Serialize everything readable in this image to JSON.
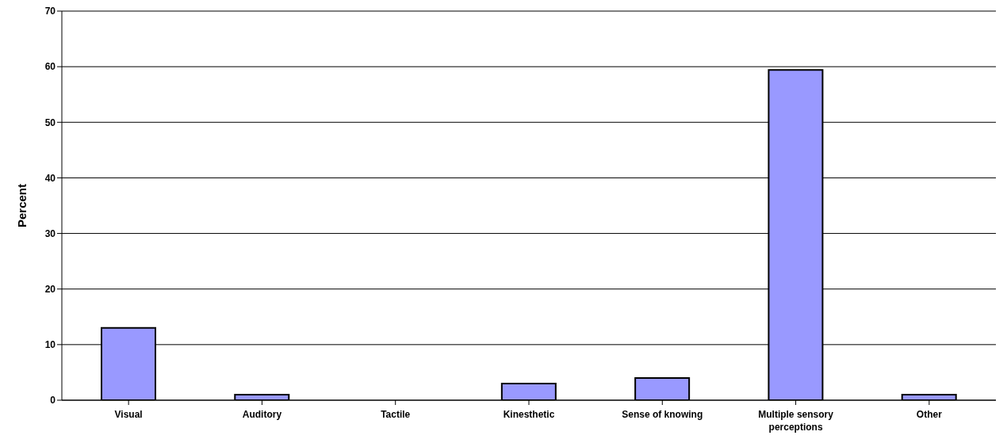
{
  "chart_data": {
    "type": "bar",
    "ylabel": "Percent",
    "categories": [
      "Visual",
      "Auditory",
      "Tactile",
      "Kinesthetic",
      "Sense of knowing",
      "Multiple sensory perceptions",
      "Other"
    ],
    "values": [
      13,
      1,
      0,
      3,
      4,
      59.4,
      1
    ],
    "color": "#9999ff",
    "ylim": [
      0,
      70
    ],
    "yticks": [
      0,
      10,
      20,
      30,
      40,
      50,
      60,
      70
    ],
    "grid": "y"
  }
}
